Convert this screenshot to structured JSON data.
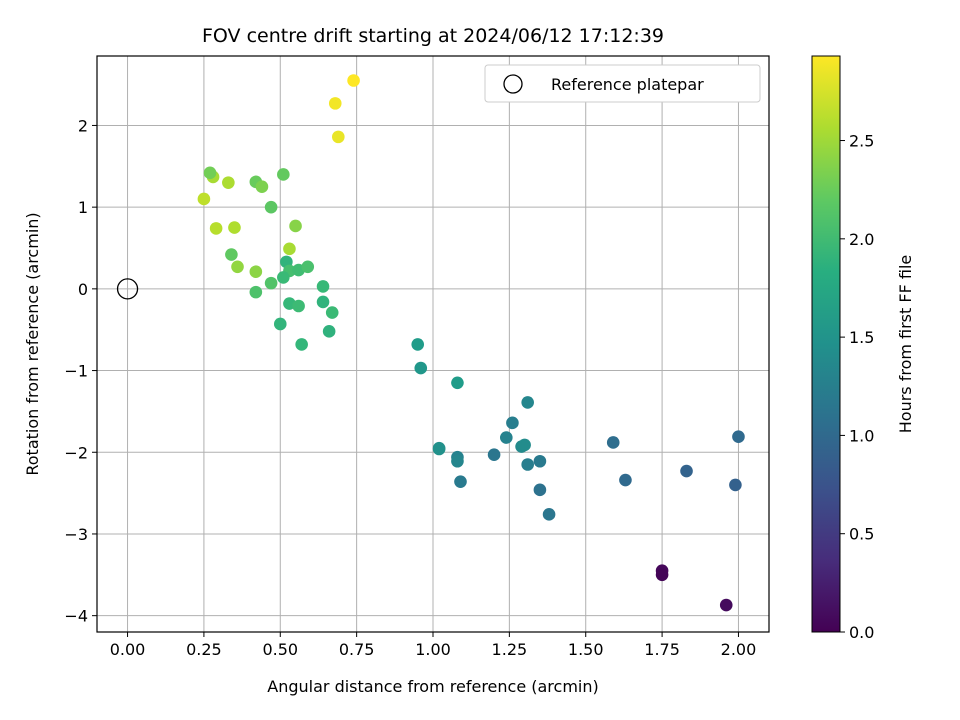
{
  "chart_data": {
    "type": "scatter",
    "title": "FOV centre drift starting at 2024/06/12 17:12:39",
    "xlabel": "Angular distance from reference (arcmin)",
    "ylabel": "Rotation from reference (arcmin)",
    "xlim": [
      -0.1,
      2.1
    ],
    "ylim": [
      -4.2,
      2.85
    ],
    "xticks": [
      0.0,
      0.25,
      0.5,
      0.75,
      1.0,
      1.25,
      1.5,
      1.75,
      2.0
    ],
    "xtick_labels": [
      "0.00",
      "0.25",
      "0.50",
      "0.75",
      "1.00",
      "1.25",
      "1.50",
      "1.75",
      "2.00"
    ],
    "yticks": [
      -4,
      -3,
      -2,
      -1,
      0,
      1,
      2
    ],
    "ytick_labels": [
      "−4",
      "−3",
      "−2",
      "−1",
      "0",
      "1",
      "2"
    ],
    "grid": true,
    "legend": {
      "position": "top-right",
      "entries": [
        "Reference platepar"
      ]
    },
    "reference_point": {
      "x": 0.0,
      "y": 0.0,
      "marker": "open-circle"
    },
    "colorbar": {
      "label": "Hours from first FF file",
      "range": [
        0.0,
        2.93
      ],
      "ticks": [
        0.0,
        0.5,
        1.0,
        1.5,
        2.0,
        2.5
      ],
      "tick_labels": [
        "0.0",
        "0.5",
        "1.0",
        "1.5",
        "2.0",
        "2.5"
      ],
      "colormap": "viridis"
    },
    "points": [
      {
        "x": 0.74,
        "y": 2.55,
        "c": 2.93
      },
      {
        "x": 0.68,
        "y": 2.27,
        "c": 2.88
      },
      {
        "x": 0.69,
        "y": 1.86,
        "c": 2.84
      },
      {
        "x": 0.25,
        "y": 1.1,
        "c": 2.65
      },
      {
        "x": 0.28,
        "y": 1.37,
        "c": 2.55
      },
      {
        "x": 0.29,
        "y": 0.74,
        "c": 2.62
      },
      {
        "x": 0.33,
        "y": 1.3,
        "c": 2.57
      },
      {
        "x": 0.35,
        "y": 0.75,
        "c": 2.58
      },
      {
        "x": 0.36,
        "y": 0.27,
        "c": 2.45
      },
      {
        "x": 0.27,
        "y": 1.42,
        "c": 2.3
      },
      {
        "x": 0.34,
        "y": 0.42,
        "c": 2.2
      },
      {
        "x": 0.42,
        "y": 0.21,
        "c": 2.42
      },
      {
        "x": 0.42,
        "y": 1.31,
        "c": 2.25
      },
      {
        "x": 0.44,
        "y": 1.25,
        "c": 2.35
      },
      {
        "x": 0.47,
        "y": 1.0,
        "c": 2.18
      },
      {
        "x": 0.42,
        "y": -0.04,
        "c": 2.1
      },
      {
        "x": 0.47,
        "y": 0.07,
        "c": 2.12
      },
      {
        "x": 0.51,
        "y": 1.4,
        "c": 2.22
      },
      {
        "x": 0.53,
        "y": 0.49,
        "c": 2.55
      },
      {
        "x": 0.55,
        "y": 0.77,
        "c": 2.4
      },
      {
        "x": 0.52,
        "y": 0.33,
        "c": 1.9
      },
      {
        "x": 0.53,
        "y": 0.22,
        "c": 2.05
      },
      {
        "x": 0.51,
        "y": 0.14,
        "c": 1.98
      },
      {
        "x": 0.56,
        "y": 0.23,
        "c": 2.02
      },
      {
        "x": 0.59,
        "y": 0.27,
        "c": 2.08
      },
      {
        "x": 0.53,
        "y": -0.18,
        "c": 1.96
      },
      {
        "x": 0.56,
        "y": -0.21,
        "c": 2.0
      },
      {
        "x": 0.5,
        "y": -0.43,
        "c": 1.92
      },
      {
        "x": 0.57,
        "y": -0.68,
        "c": 1.94
      },
      {
        "x": 0.64,
        "y": 0.03,
        "c": 1.97
      },
      {
        "x": 0.64,
        "y": -0.16,
        "c": 1.9
      },
      {
        "x": 0.67,
        "y": -0.29,
        "c": 1.99
      },
      {
        "x": 0.66,
        "y": -0.52,
        "c": 1.88
      },
      {
        "x": 0.95,
        "y": -0.68,
        "c": 1.6
      },
      {
        "x": 0.96,
        "y": -0.97,
        "c": 1.55
      },
      {
        "x": 1.08,
        "y": -1.15,
        "c": 1.6
      },
      {
        "x": 1.02,
        "y": -1.95,
        "c": 1.45
      },
      {
        "x": 1.02,
        "y": -1.96,
        "c": 1.48
      },
      {
        "x": 1.08,
        "y": -2.06,
        "c": 1.3
      },
      {
        "x": 1.08,
        "y": -2.11,
        "c": 1.35
      },
      {
        "x": 1.09,
        "y": -2.36,
        "c": 1.2
      },
      {
        "x": 1.2,
        "y": -2.03,
        "c": 1.15
      },
      {
        "x": 1.24,
        "y": -1.82,
        "c": 1.3
      },
      {
        "x": 1.26,
        "y": -1.64,
        "c": 1.25
      },
      {
        "x": 1.29,
        "y": -1.93,
        "c": 1.4
      },
      {
        "x": 1.3,
        "y": -1.91,
        "c": 1.42
      },
      {
        "x": 1.31,
        "y": -1.39,
        "c": 1.35
      },
      {
        "x": 1.31,
        "y": -2.15,
        "c": 1.25
      },
      {
        "x": 1.35,
        "y": -2.11,
        "c": 1.2
      },
      {
        "x": 1.35,
        "y": -2.46,
        "c": 1.1
      },
      {
        "x": 1.38,
        "y": -2.76,
        "c": 1.15
      },
      {
        "x": 1.59,
        "y": -1.88,
        "c": 1.05
      },
      {
        "x": 1.63,
        "y": -2.34,
        "c": 1.0
      },
      {
        "x": 1.83,
        "y": -2.23,
        "c": 0.92
      },
      {
        "x": 2.0,
        "y": -1.81,
        "c": 1.0
      },
      {
        "x": 1.99,
        "y": -2.4,
        "c": 0.9
      },
      {
        "x": 1.75,
        "y": -3.45,
        "c": 0.05
      },
      {
        "x": 1.75,
        "y": -3.5,
        "c": 0.03
      },
      {
        "x": 1.96,
        "y": -3.87,
        "c": 0.08
      }
    ]
  }
}
